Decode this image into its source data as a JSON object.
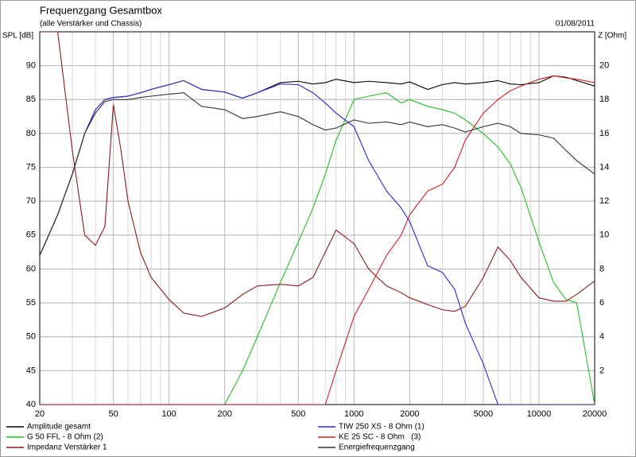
{
  "chart_data": {
    "type": "line",
    "title": "Frequenzgang Gesamtbox",
    "subtitle": "(alle Verstärker und Chassis)",
    "date": "01/08/2011",
    "ylabel": "SPL [dB]",
    "y2label": "Z [Ohm]",
    "xscale": "log",
    "grid": true,
    "xlim": [
      20,
      20000
    ],
    "xticks": [
      20,
      50,
      100,
      200,
      500,
      1000,
      2000,
      5000,
      10000,
      20000
    ],
    "xgrid_minor": [
      30,
      40,
      60,
      70,
      80,
      90,
      300,
      400,
      600,
      700,
      800,
      900,
      3000,
      4000,
      6000,
      7000,
      8000,
      9000
    ],
    "ylim": [
      40,
      95
    ],
    "yticks": [
      40,
      45,
      50,
      55,
      60,
      65,
      70,
      75,
      80,
      85,
      90
    ],
    "y2lim": [
      0,
      22
    ],
    "y2ticks": [
      2,
      4,
      6,
      8,
      10,
      12,
      14,
      16,
      18,
      20
    ],
    "x": [
      20,
      25,
      30,
      35,
      40,
      45,
      50,
      55,
      60,
      70,
      80,
      100,
      120,
      150,
      200,
      250,
      300,
      400,
      500,
      600,
      700,
      800,
      1000,
      1200,
      1500,
      1800,
      2000,
      2500,
      3000,
      3500,
      4000,
      5000,
      6000,
      7000,
      8000,
      10000,
      12000,
      14000,
      16000,
      20000
    ],
    "series": [
      {
        "name": "Amplitude gesamt",
        "color": "#000000",
        "values": [
          62,
          68,
          74,
          80,
          83.5,
          85,
          85.3,
          85.4,
          85.5,
          86,
          86.5,
          87.2,
          87.8,
          86.5,
          86.1,
          85.2,
          86,
          87.5,
          87.7,
          87.3,
          87.5,
          88,
          87.5,
          87.7,
          87.5,
          87.3,
          87.6,
          86.5,
          87.2,
          87.5,
          87.3,
          87.5,
          87.8,
          87.3,
          87.2,
          87.5,
          88.5,
          88.3,
          87.8,
          87
        ]
      },
      {
        "name": "G 50 FFL - 8 Ohm (2)",
        "color": "#22c022",
        "values": [
          40,
          40,
          40,
          40,
          40,
          40,
          40,
          40,
          40,
          40,
          40,
          40,
          40,
          40,
          40,
          45,
          50,
          58,
          64,
          69,
          74,
          79,
          85,
          85.5,
          86,
          84.5,
          85,
          84,
          83.5,
          83,
          82,
          80,
          78,
          75.5,
          72,
          64,
          58,
          55.5,
          55,
          40
        ]
      },
      {
        "name": "Impedanz Verstärker 1",
        "color": "#8b1a1a",
        "axis": "y2",
        "values": [
          22,
          22,
          15,
          10,
          9.4,
          10.5,
          17.7,
          15,
          12,
          9,
          7.5,
          6.2,
          5.4,
          5.2,
          5.7,
          6.5,
          7,
          7.1,
          7,
          7.5,
          9,
          10.3,
          9.5,
          8,
          7,
          6.6,
          6.3,
          5.9,
          5.6,
          5.5,
          5.8,
          7.5,
          9.3,
          8.5,
          7.5,
          6.3,
          6.1,
          6.1,
          6.5,
          7.3
        ]
      },
      {
        "name": "TIW 250 XS - 8 Ohm (1)",
        "color": "#2a2ad0",
        "values": [
          62,
          68,
          74,
          80,
          83.5,
          85,
          85.3,
          85.4,
          85.5,
          86,
          86.5,
          87.2,
          87.8,
          86.5,
          86.1,
          85.2,
          86,
          87.3,
          87.2,
          86,
          84.5,
          83,
          81,
          76,
          71.5,
          69,
          67,
          60.5,
          59.5,
          57,
          52,
          46,
          40,
          40,
          40,
          40,
          40,
          40,
          40,
          40
        ]
      },
      {
        "name": "KE 25 SC - 8 Ohm   (3)",
        "color": "#d02020",
        "values": [
          40,
          40,
          40,
          40,
          40,
          40,
          40,
          40,
          40,
          40,
          40,
          40,
          40,
          40,
          40,
          40,
          40,
          40,
          40,
          40,
          40,
          45,
          53,
          57,
          62,
          65,
          68,
          71.5,
          72.5,
          75,
          79,
          83,
          85,
          86.3,
          87,
          88,
          88.5,
          88.2,
          88,
          87.5
        ]
      },
      {
        "name": "Energiefrequenzgang",
        "color": "#333333",
        "values": [
          62,
          68,
          74,
          80,
          83,
          84.7,
          85,
          85,
          85,
          85.3,
          85.5,
          85.8,
          86,
          84,
          83.5,
          82.2,
          82.5,
          83.2,
          82.5,
          81.3,
          80.5,
          80.8,
          82,
          81.5,
          81.7,
          81.3,
          81.7,
          81,
          81.3,
          80.8,
          80.2,
          81,
          81.5,
          81,
          80,
          79.8,
          79.3,
          77.5,
          76,
          74
        ]
      }
    ]
  }
}
